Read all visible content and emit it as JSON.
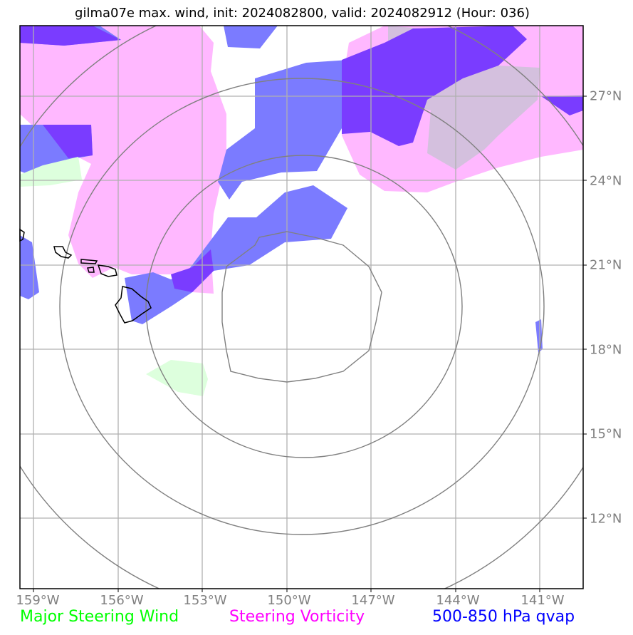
{
  "title": "gilma07e max. wind, init: 2024082800, valid: 2024082912 (Hour: 036)",
  "longitude_labels": [
    "159°W",
    "156°W",
    "153°W",
    "150°W",
    "147°W",
    "144°W",
    "141°W"
  ],
  "latitude_labels": [
    "27°N",
    "24°N",
    "21°N",
    "18°N",
    "15°N",
    "12°N"
  ],
  "legend": {
    "major_steering_wind": "Major Steering Wind",
    "steering_vorticity": "Steering Vorticity",
    "qvap": "500-850 hPa qvap"
  },
  "colors": {
    "major_steering_wind": "#00ff00",
    "steering_vorticity": "#ff00ff",
    "qvap": "#0000ff",
    "vorticity_fill": "#ffb8ff",
    "qvap_fill": "#7b7bff",
    "overlap_fill": "#7a3cff",
    "wind_fill": "#ddffdd",
    "grid": "#b0b0b0",
    "range_rings": "#808080"
  },
  "icons": {
    "coastline": "hawaiian-islands-outline",
    "center": "storm-center"
  }
}
